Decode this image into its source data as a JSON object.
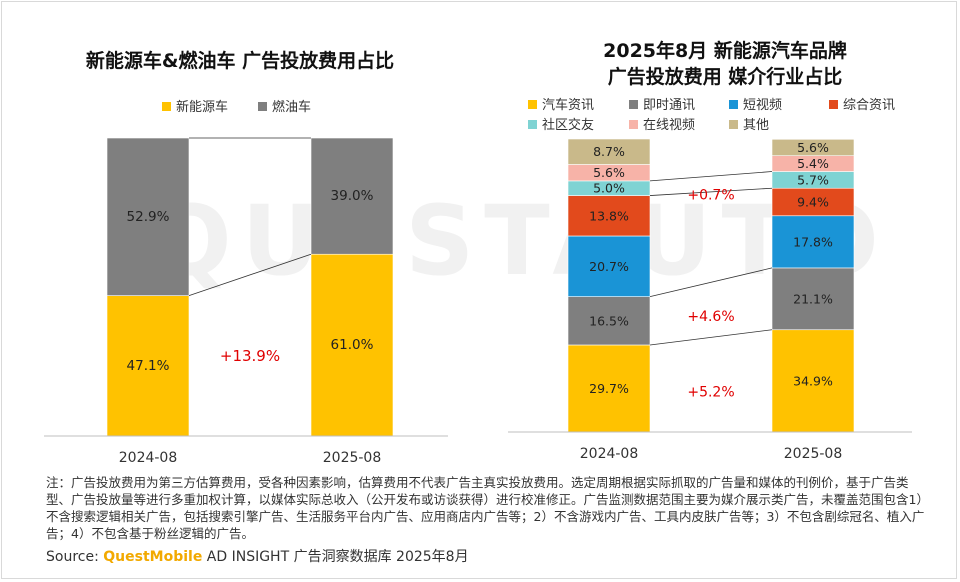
{
  "watermark": "QUESTAUTO",
  "colors": {
    "nev": "#ffc200",
    "fuel": "#7f7f7f",
    "auto_news": "#ffc200",
    "im": "#7f7f7f",
    "short_video": "#1a94d6",
    "news": "#e24a1c",
    "social": "#7fd3d3",
    "online_video": "#f7b3a8",
    "other": "#c9b98a"
  },
  "chart_data": [
    {
      "type": "bar",
      "stacked": true,
      "title": "新能源车&燃油车 广告投放费用占比",
      "categories": [
        "2024-08",
        "2025-08"
      ],
      "series": [
        {
          "name": "新能源车",
          "color_key": "nev",
          "values": [
            47.1,
            61.0
          ],
          "labels": [
            "47.1%",
            "61.0%"
          ]
        },
        {
          "name": "燃油车",
          "color_key": "fuel",
          "values": [
            52.9,
            39.0
          ],
          "labels": [
            "52.9%",
            "39.0%"
          ]
        }
      ],
      "annotations": [
        {
          "text": "+13.9%",
          "series": "新能源车"
        }
      ],
      "ylim": [
        0,
        100
      ]
    },
    {
      "type": "bar",
      "stacked": true,
      "title_lines": [
        "2025年8月 新能源汽车品牌",
        "广告投放费用 媒介行业占比"
      ],
      "categories": [
        "2024-08",
        "2025-08"
      ],
      "series": [
        {
          "name": "汽车资讯",
          "color_key": "auto_news",
          "values": [
            29.7,
            34.9
          ],
          "labels": [
            "29.7%",
            "34.9%"
          ]
        },
        {
          "name": "即时通讯",
          "color_key": "im",
          "values": [
            16.5,
            21.1
          ],
          "labels": [
            "16.5%",
            "21.1%"
          ]
        },
        {
          "name": "短视频",
          "color_key": "short_video",
          "values": [
            20.7,
            17.8
          ],
          "labels": [
            "20.7%",
            "17.8%"
          ]
        },
        {
          "name": "综合资讯",
          "color_key": "news",
          "values": [
            13.8,
            9.4
          ],
          "labels": [
            "13.8%",
            "9.4%"
          ]
        },
        {
          "name": "社区交友",
          "color_key": "social",
          "values": [
            5.0,
            5.7
          ],
          "labels": [
            "5.0%",
            "5.7%"
          ]
        },
        {
          "name": "在线视频",
          "color_key": "online_video",
          "values": [
            5.6,
            5.4
          ],
          "labels": [
            "5.6%",
            "5.4%"
          ]
        },
        {
          "name": "其他",
          "color_key": "other",
          "values": [
            8.7,
            5.6
          ],
          "labels": [
            "8.7%",
            "5.6%"
          ]
        }
      ],
      "annotations": [
        {
          "text": "+5.2%",
          "series": "汽车资讯"
        },
        {
          "text": "+4.6%",
          "series": "即时通讯"
        },
        {
          "text": "+0.7%",
          "series": "社区交友"
        }
      ],
      "ylim": [
        0,
        100
      ]
    }
  ],
  "footnote": "注：广告投放费用为第三方估算费用，受各种因素影响，估算费用不代表广告主真实投放费用。选定周期根据实际抓取的广告量和媒体的刊例价，基于广告类型、广告投放量等进行多重加权计算，以媒体实际总收入（公开发布或访谈获得）进行校准修正。广告监测数据范围主要为媒介展示类广告，未覆盖范围包含1）不含搜索逻辑相关广告，包括搜索引擎广告、生活服务平台内广告、应用商店内广告等；2）不含游戏内广告、工具内皮肤广告等；3）不包含剧综冠名、植入广告；4）不包含基于粉丝逻辑的广告。",
  "source": {
    "prefix": "Source: ",
    "brand": "QuestMobile",
    "suffix": " AD INSIGHT 广告洞察数据库 2025年8月"
  }
}
